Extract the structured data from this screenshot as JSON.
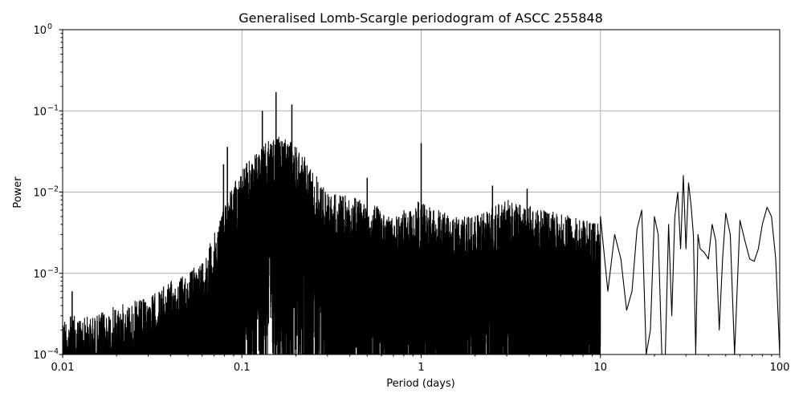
{
  "chart_data": {
    "type": "line",
    "title": "Generalised Lomb-Scargle periodogram of ASCC 255848",
    "xlabel": "Period (days)",
    "ylabel": "Power",
    "xscale": "log",
    "yscale": "log",
    "xlim": [
      0.01,
      100
    ],
    "ylim": [
      0.0001,
      1
    ],
    "grid": true,
    "line_color": "#000000",
    "grid_color": "#b0b0b0",
    "x_ticks": [
      {
        "value": 0.01,
        "label": "0.01"
      },
      {
        "value": 0.1,
        "label": "0.1"
      },
      {
        "value": 1,
        "label": "1"
      },
      {
        "value": 10,
        "label": "10"
      },
      {
        "value": 100,
        "label": "100"
      }
    ],
    "y_ticks": [
      {
        "value": 0.0001,
        "base": "10",
        "exp": "−4"
      },
      {
        "value": 0.001,
        "base": "10",
        "exp": "−3"
      },
      {
        "value": 0.01,
        "base": "10",
        "exp": "−2"
      },
      {
        "value": 0.1,
        "base": "10",
        "exp": "−1"
      },
      {
        "value": 1,
        "base": "10",
        "exp": "0"
      }
    ],
    "envelope": {
      "period": [
        0.01,
        0.015,
        0.02,
        0.03,
        0.04,
        0.05,
        0.06,
        0.07,
        0.08,
        0.1,
        0.12,
        0.15,
        0.2,
        0.3,
        0.5,
        0.7,
        1.0,
        1.5,
        2,
        3,
        5,
        7,
        10
      ],
      "upper_power": [
        0.0003,
        0.0003,
        0.0004,
        0.0005,
        0.0008,
        0.001,
        0.0015,
        0.003,
        0.008,
        0.02,
        0.03,
        0.05,
        0.04,
        0.01,
        0.008,
        0.005,
        0.008,
        0.005,
        0.005,
        0.008,
        0.006,
        0.005,
        0.004
      ]
    },
    "notable_peaks": [
      {
        "period": 0.0113,
        "power": 0.0006
      },
      {
        "period": 0.079,
        "power": 0.022
      },
      {
        "period": 0.083,
        "power": 0.036
      },
      {
        "period": 0.13,
        "power": 0.1
      },
      {
        "period": 0.155,
        "power": 0.17
      },
      {
        "period": 0.19,
        "power": 0.12
      },
      {
        "period": 0.5,
        "power": 0.015
      },
      {
        "period": 1.0,
        "power": 0.04
      },
      {
        "period": 2.5,
        "power": 0.012
      },
      {
        "period": 3.9,
        "power": 0.011
      }
    ],
    "long_period_curve": {
      "period": [
        10,
        11,
        12,
        13,
        14,
        15,
        16,
        17,
        18,
        19,
        20,
        21,
        22,
        23,
        24,
        25,
        26,
        27,
        28,
        29,
        30,
        31,
        32,
        33,
        34,
        35,
        36,
        38,
        40,
        42,
        44,
        46,
        48,
        50,
        53,
        56,
        60,
        64,
        68,
        72,
        76,
        80,
        85,
        90,
        95,
        100
      ],
      "power": [
        0.005,
        0.0006,
        0.003,
        0.0015,
        0.00035,
        0.0006,
        0.0035,
        0.006,
        0.0001,
        0.0002,
        0.005,
        0.003,
        0.0001,
        0.0001,
        0.004,
        0.0003,
        0.005,
        0.01,
        0.002,
        0.016,
        0.002,
        0.013,
        0.007,
        0.003,
        0.0001,
        0.003,
        0.002,
        0.0018,
        0.0015,
        0.004,
        0.0025,
        0.0002,
        0.0015,
        0.0055,
        0.003,
        0.0001,
        0.0045,
        0.0025,
        0.0015,
        0.0014,
        0.002,
        0.004,
        0.0065,
        0.005,
        0.0015,
        0.0001
      ]
    }
  }
}
